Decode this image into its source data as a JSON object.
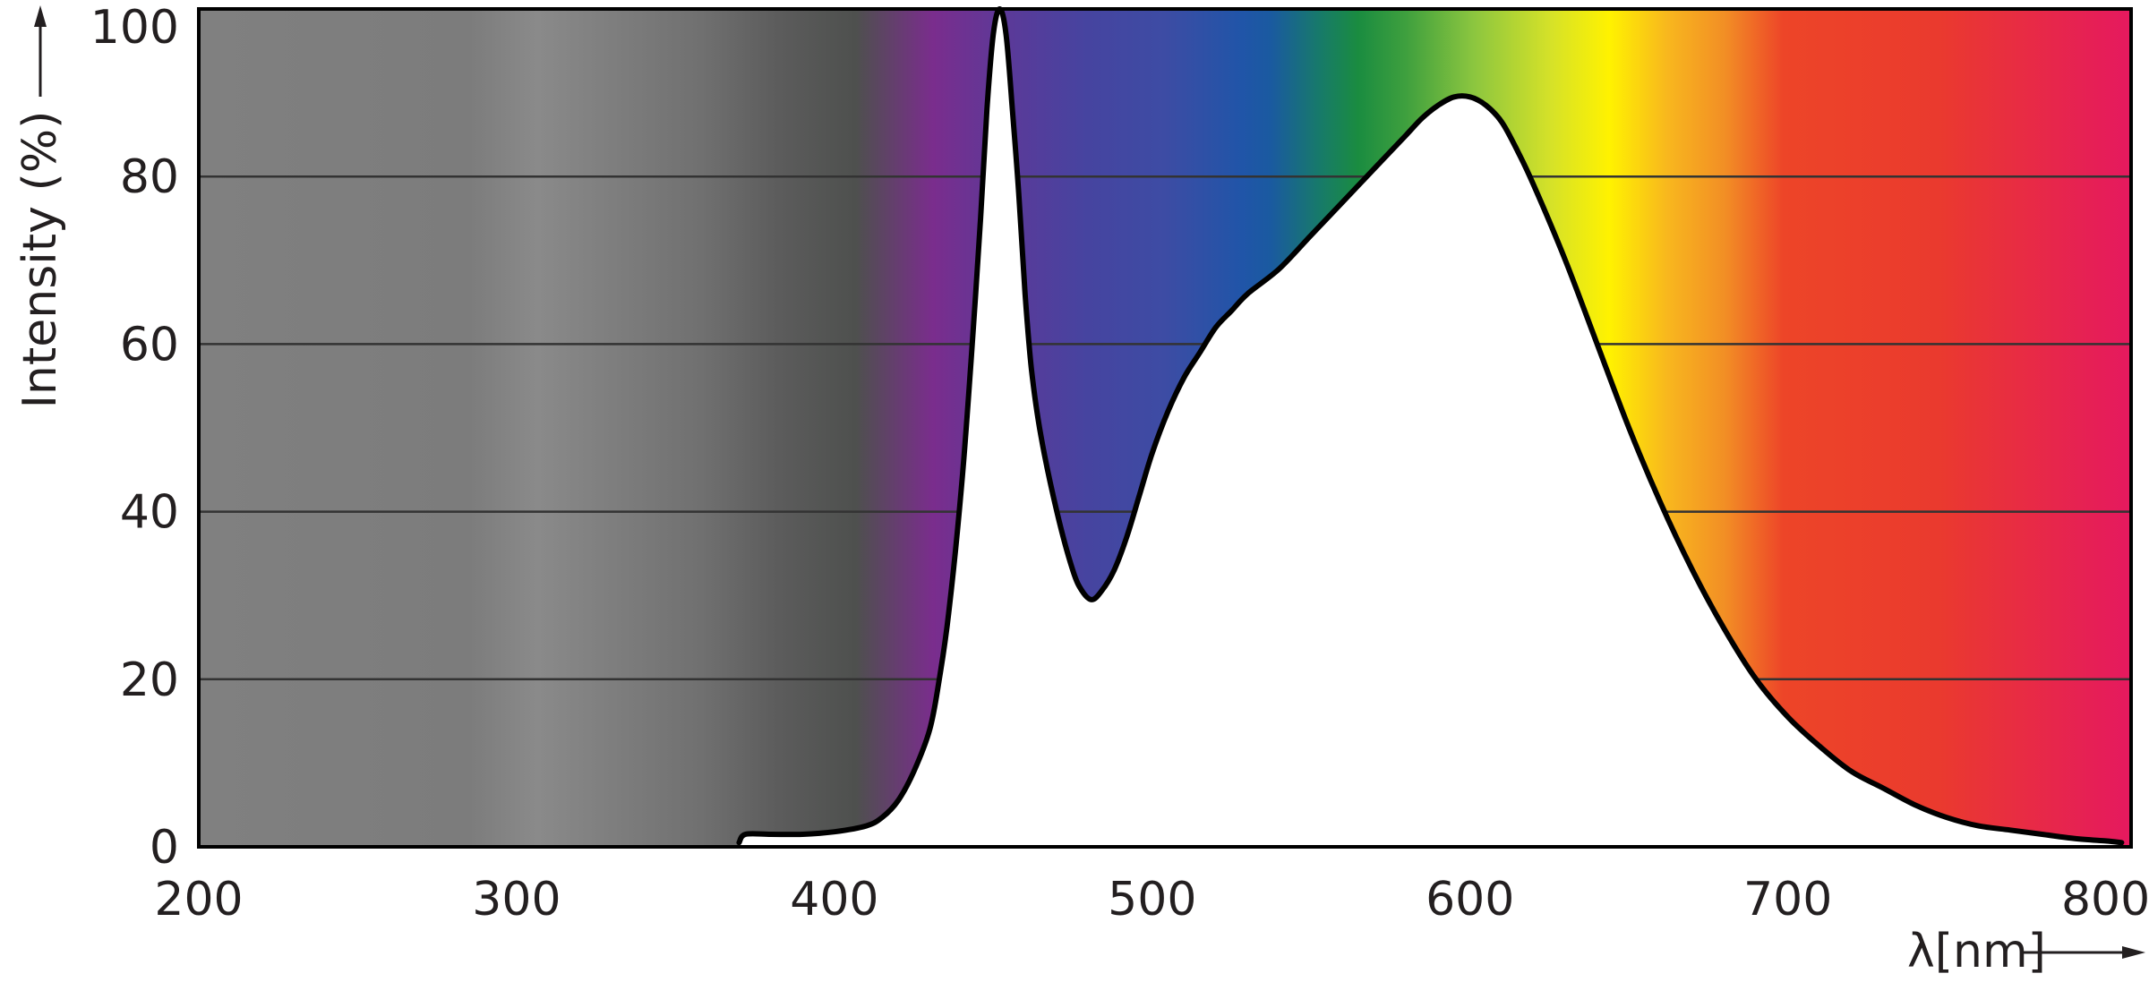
{
  "chart_data": {
    "type": "area",
    "xlabel": "λ[nm]",
    "ylabel": "Intensity (%)",
    "xlim": [
      200,
      808
    ],
    "ylim": [
      0,
      100
    ],
    "x_ticks": [
      "200",
      "300",
      "400",
      "500",
      "600",
      "700",
      "800"
    ],
    "y_ticks": [
      "0",
      "20",
      "40",
      "60",
      "80",
      "100"
    ],
    "grid": "horizontal",
    "background": "visible-spectrum color gradient (grey below 370 nm)",
    "series": [
      {
        "x": [
          370,
          372,
          380,
          390,
          400,
          410,
          415,
          420,
          425,
          430,
          433,
          436,
          440,
          443,
          446,
          448,
          450,
          452,
          454,
          456,
          458,
          460,
          462,
          465,
          470,
          475,
          478,
          481,
          484,
          488,
          492,
          496,
          500,
          505,
          510,
          515,
          520,
          525,
          530,
          540,
          550,
          560,
          570,
          580,
          585,
          590,
          595,
          600,
          605,
          610,
          615,
          620,
          630,
          640,
          650,
          660,
          670,
          680,
          690,
          700,
          710,
          720,
          730,
          740,
          750,
          760,
          770,
          780,
          790,
          800,
          805
        ],
        "y": [
          0.5,
          1.5,
          1.5,
          1.5,
          1.8,
          2.5,
          3.5,
          5.5,
          9,
          14,
          20,
          28,
          43,
          58,
          75,
          88,
          97,
          100,
          97,
          88,
          78,
          66,
          57,
          49,
          40,
          33,
          30.5,
          29.5,
          30.5,
          33,
          37,
          42,
          47,
          52,
          56,
          59,
          62,
          64,
          66,
          69,
          73,
          77,
          81,
          85,
          87,
          88.5,
          89.5,
          89.5,
          88.5,
          86.5,
          83,
          79,
          70,
          60,
          50,
          41,
          33,
          26,
          20,
          15.5,
          12,
          9,
          7,
          5,
          3.5,
          2.5,
          2,
          1.5,
          1,
          0.7,
          0.5
        ]
      }
    ]
  }
}
